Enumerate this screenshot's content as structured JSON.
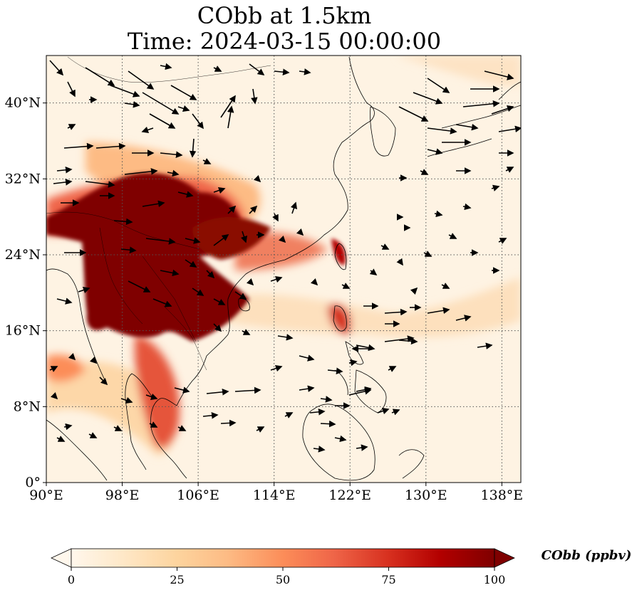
{
  "title": {
    "line1": "CObb at 1.5km",
    "line2": "Time: 2024-03-15 00:00:00"
  },
  "map": {
    "region": "East and Southeast Asia",
    "projection": "PlateCarree",
    "lon_range": [
      90,
      140
    ],
    "lat_range": [
      0,
      45
    ],
    "gridlines": "dotted",
    "lon_ticks": [
      {
        "value": 90,
        "label": "90°E"
      },
      {
        "value": 98,
        "label": "98°E"
      },
      {
        "value": 106,
        "label": "106°E"
      },
      {
        "value": 114,
        "label": "114°E"
      },
      {
        "value": 122,
        "label": "122°E"
      },
      {
        "value": 130,
        "label": "130°E"
      },
      {
        "value": 138,
        "label": "138°E"
      }
    ],
    "lat_ticks": [
      {
        "value": 0,
        "label": "0°"
      },
      {
        "value": 8,
        "label": "8°N"
      },
      {
        "value": 16,
        "label": "16°N"
      },
      {
        "value": 24,
        "label": "24°N"
      },
      {
        "value": 32,
        "label": "32°N"
      },
      {
        "value": 40,
        "label": "40°N"
      }
    ],
    "wind_vectors": "shown as black arrows"
  },
  "colorbar": {
    "title": "CObb (ppbv)",
    "colormap": "OrRd",
    "min": 0,
    "max": 100,
    "extend": "both",
    "ticks": [
      {
        "value": 0,
        "label": "0"
      },
      {
        "value": 25,
        "label": "25"
      },
      {
        "value": 50,
        "label": "50"
      },
      {
        "value": 75,
        "label": "75"
      },
      {
        "value": 100,
        "label": "100"
      }
    ],
    "colors": [
      "#fff7ec",
      "#fee8c8",
      "#fdd49e",
      "#fdbb84",
      "#fc8d59",
      "#ef6548",
      "#d7301f",
      "#b30000",
      "#7f0000"
    ]
  }
}
